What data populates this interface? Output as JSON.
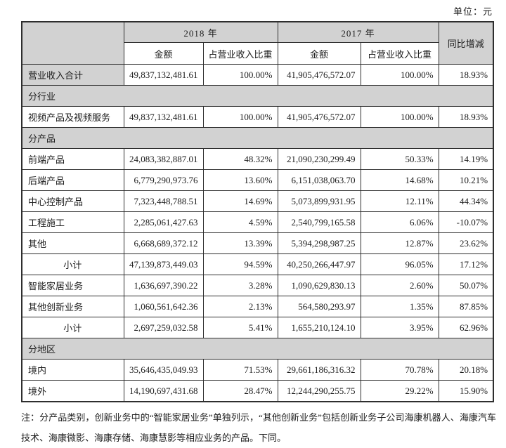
{
  "unit_label": "单位：元",
  "table": {
    "header": {
      "year_2018": "2018 年",
      "year_2017": "2017 年",
      "amount_label": "金额",
      "ratio_label": "占营业收入比重",
      "yoy_label": "同比增减"
    },
    "rows": [
      {
        "kind": "data",
        "label": "营业收入合计",
        "label_shaded": true,
        "cells": [
          "49,837,132,481.61",
          "100.00%",
          "41,905,476,572.07",
          "100.00%",
          "18.93%"
        ]
      },
      {
        "kind": "section",
        "label": "分行业"
      },
      {
        "kind": "data",
        "label": "视频产品及视频服务",
        "cells": [
          "49,837,132,481.61",
          "100.00%",
          "41,905,476,572.07",
          "100.00%",
          "18.93%"
        ]
      },
      {
        "kind": "section",
        "label": "分产品"
      },
      {
        "kind": "data",
        "label": "前端产品",
        "cells": [
          "24,083,382,887.01",
          "48.32%",
          "21,090,230,299.49",
          "50.33%",
          "14.19%"
        ]
      },
      {
        "kind": "data",
        "label": "后端产品",
        "cells": [
          "6,779,290,973.76",
          "13.60%",
          "6,151,038,063.70",
          "14.68%",
          "10.21%"
        ]
      },
      {
        "kind": "data",
        "label": "中心控制产品",
        "cells": [
          "7,323,448,788.51",
          "14.69%",
          "5,073,899,931.95",
          "12.11%",
          "44.34%"
        ]
      },
      {
        "kind": "data",
        "label": "工程施工",
        "cells": [
          "2,285,061,427.63",
          "4.59%",
          "2,540,799,165.58",
          "6.06%",
          "-10.07%"
        ]
      },
      {
        "kind": "data",
        "label": "其他",
        "cells": [
          "6,668,689,372.12",
          "13.39%",
          "5,394,298,987.25",
          "12.87%",
          "23.62%"
        ]
      },
      {
        "kind": "data",
        "label": "小计",
        "label_align": "center",
        "cells": [
          "47,139,873,449.03",
          "94.59%",
          "40,250,266,447.97",
          "96.05%",
          "17.12%"
        ]
      },
      {
        "kind": "data",
        "label": "智能家居业务",
        "cells": [
          "1,636,697,390.22",
          "3.28%",
          "1,090,629,830.13",
          "2.60%",
          "50.07%"
        ]
      },
      {
        "kind": "data",
        "label": "其他创新业务",
        "cells": [
          "1,060,561,642.36",
          "2.13%",
          "564,580,293.97",
          "1.35%",
          "87.85%"
        ]
      },
      {
        "kind": "data",
        "label": "小计",
        "label_align": "center",
        "cells": [
          "2,697,259,032.58",
          "5.41%",
          "1,655,210,124.10",
          "3.95%",
          "62.96%"
        ]
      },
      {
        "kind": "section",
        "label": "分地区"
      },
      {
        "kind": "data",
        "label": "境内",
        "cells": [
          "35,646,435,049.93",
          "71.53%",
          "29,661,186,316.32",
          "70.78%",
          "20.18%"
        ]
      },
      {
        "kind": "data",
        "label": "境外",
        "cells": [
          "14,190,697,431.68",
          "28.47%",
          "12,244,290,255.75",
          "29.22%",
          "15.90%"
        ]
      }
    ]
  },
  "footnote": "注：分产品类别，创新业务中的“智能家居业务”单独列示，“其他创新业务”包括创新业务子公司海康机器人、海康汽车技术、海康微影、海康存储、海康慧影等相应业务的产品。下同。",
  "colors": {
    "shaded_cell": "#d2d2d2",
    "border": "#2e2e2e",
    "background": "#ffffff"
  }
}
